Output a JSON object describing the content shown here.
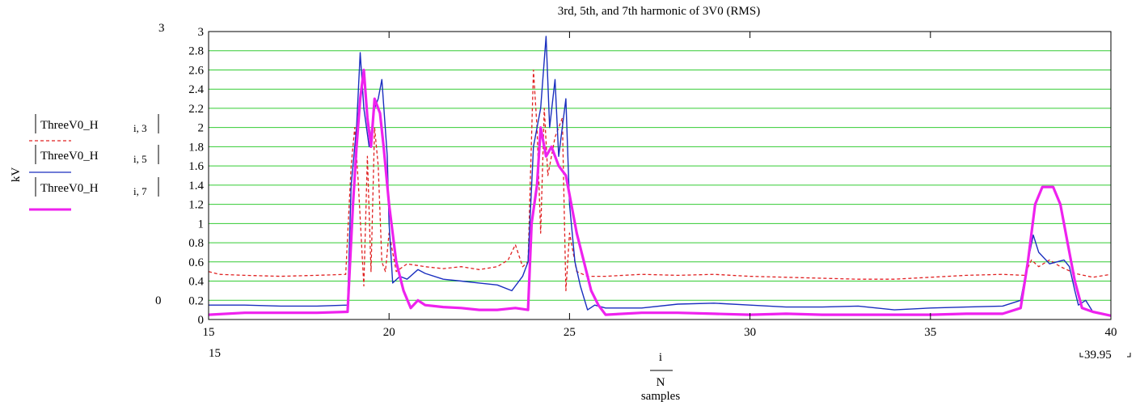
{
  "chart_data": {
    "type": "line",
    "title": "3rd, 5th, and 7th harmonic of 3V0 (RMS)",
    "ylabel": "kV",
    "xlabel_numerator": "i",
    "xlabel_denominator": "N",
    "xlabel_units": "samples",
    "xlim": [
      15,
      40
    ],
    "ylim": [
      0,
      3
    ],
    "x_ticks": [
      15,
      20,
      25,
      30,
      35,
      40
    ],
    "y_ticks": [
      0,
      0.2,
      0.4,
      0.6,
      0.8,
      1,
      1.2,
      1.4,
      1.6,
      1.8,
      2,
      2.2,
      2.4,
      2.6,
      2.8,
      3
    ],
    "y_range_labels": {
      "max": "3",
      "min": "0"
    },
    "x_range_labels": {
      "min": "15",
      "max": "39.95"
    },
    "grid": true,
    "series": [
      {
        "name": "ThreeV0_H",
        "subscript": "i, 3",
        "color": "#e02020",
        "style": "dashed",
        "points": [
          [
            15,
            0.5
          ],
          [
            15.3,
            0.47
          ],
          [
            16,
            0.46
          ],
          [
            17,
            0.45
          ],
          [
            18,
            0.46
          ],
          [
            18.8,
            0.47
          ],
          [
            18.95,
            1.6
          ],
          [
            19.05,
            2.0
          ],
          [
            19.15,
            1.4
          ],
          [
            19.3,
            0.35
          ],
          [
            19.4,
            1.7
          ],
          [
            19.5,
            0.5
          ],
          [
            19.6,
            2.0
          ],
          [
            19.7,
            1.6
          ],
          [
            19.8,
            0.6
          ],
          [
            19.9,
            0.5
          ],
          [
            20.0,
            0.9
          ],
          [
            20.2,
            0.5
          ],
          [
            20.5,
            0.58
          ],
          [
            21.0,
            0.55
          ],
          [
            21.5,
            0.53
          ],
          [
            22.0,
            0.55
          ],
          [
            22.5,
            0.52
          ],
          [
            23.0,
            0.55
          ],
          [
            23.3,
            0.62
          ],
          [
            23.5,
            0.78
          ],
          [
            23.7,
            0.55
          ],
          [
            23.85,
            0.6
          ],
          [
            24.0,
            2.6
          ],
          [
            24.1,
            2.0
          ],
          [
            24.2,
            0.9
          ],
          [
            24.3,
            2.2
          ],
          [
            24.4,
            1.5
          ],
          [
            24.6,
            1.9
          ],
          [
            24.8,
            2.1
          ],
          [
            24.9,
            0.3
          ],
          [
            25.0,
            0.9
          ],
          [
            25.2,
            0.5
          ],
          [
            25.5,
            0.45
          ],
          [
            26,
            0.45
          ],
          [
            27,
            0.47
          ],
          [
            28,
            0.46
          ],
          [
            29,
            0.47
          ],
          [
            30,
            0.45
          ],
          [
            31,
            0.44
          ],
          [
            32,
            0.43
          ],
          [
            33,
            0.42
          ],
          [
            34,
            0.42
          ],
          [
            35,
            0.44
          ],
          [
            36,
            0.46
          ],
          [
            37,
            0.47
          ],
          [
            37.6,
            0.46
          ],
          [
            37.8,
            0.62
          ],
          [
            38.0,
            0.55
          ],
          [
            38.3,
            0.62
          ],
          [
            38.6,
            0.55
          ],
          [
            39.0,
            0.48
          ],
          [
            39.5,
            0.44
          ],
          [
            40,
            0.47
          ]
        ]
      },
      {
        "name": "ThreeV0_H",
        "subscript": "i, 5",
        "color": "#1a2fbf",
        "style": "solid",
        "points": [
          [
            15,
            0.15
          ],
          [
            16,
            0.15
          ],
          [
            17,
            0.14
          ],
          [
            18,
            0.14
          ],
          [
            18.85,
            0.15
          ],
          [
            18.95,
            1.4
          ],
          [
            19.1,
            2.0
          ],
          [
            19.2,
            2.78
          ],
          [
            19.3,
            2.2
          ],
          [
            19.45,
            1.8
          ],
          [
            19.6,
            2.2
          ],
          [
            19.7,
            2.3
          ],
          [
            19.8,
            2.5
          ],
          [
            19.95,
            1.7
          ],
          [
            20.0,
            1.0
          ],
          [
            20.1,
            0.38
          ],
          [
            20.3,
            0.45
          ],
          [
            20.5,
            0.42
          ],
          [
            20.8,
            0.52
          ],
          [
            21.0,
            0.48
          ],
          [
            21.5,
            0.42
          ],
          [
            22,
            0.4
          ],
          [
            22.5,
            0.38
          ],
          [
            23,
            0.36
          ],
          [
            23.4,
            0.3
          ],
          [
            23.7,
            0.45
          ],
          [
            23.85,
            0.6
          ],
          [
            24.0,
            1.8
          ],
          [
            24.2,
            2.2
          ],
          [
            24.35,
            2.95
          ],
          [
            24.45,
            2.0
          ],
          [
            24.6,
            2.5
          ],
          [
            24.7,
            1.7
          ],
          [
            24.9,
            2.3
          ],
          [
            25.0,
            1.2
          ],
          [
            25.15,
            0.6
          ],
          [
            25.3,
            0.35
          ],
          [
            25.5,
            0.1
          ],
          [
            25.7,
            0.15
          ],
          [
            26,
            0.12
          ],
          [
            27,
            0.12
          ],
          [
            28,
            0.16
          ],
          [
            29,
            0.17
          ],
          [
            30,
            0.15
          ],
          [
            31,
            0.13
          ],
          [
            32,
            0.13
          ],
          [
            33,
            0.14
          ],
          [
            34,
            0.1
          ],
          [
            35,
            0.12
          ],
          [
            36,
            0.13
          ],
          [
            37,
            0.14
          ],
          [
            37.5,
            0.2
          ],
          [
            37.7,
            0.6
          ],
          [
            37.85,
            0.88
          ],
          [
            38.0,
            0.7
          ],
          [
            38.3,
            0.58
          ],
          [
            38.7,
            0.62
          ],
          [
            38.85,
            0.55
          ],
          [
            39.0,
            0.3
          ],
          [
            39.1,
            0.15
          ],
          [
            39.3,
            0.2
          ],
          [
            39.5,
            0.08
          ],
          [
            40,
            0.04
          ]
        ]
      },
      {
        "name": "ThreeV0_H",
        "subscript": "i, 7",
        "color": "#ee22ee",
        "style": "thick",
        "points": [
          [
            15,
            0.05
          ],
          [
            16,
            0.07
          ],
          [
            17,
            0.07
          ],
          [
            18,
            0.07
          ],
          [
            18.85,
            0.08
          ],
          [
            19.0,
            1.2
          ],
          [
            19.1,
            1.8
          ],
          [
            19.2,
            2.3
          ],
          [
            19.3,
            2.6
          ],
          [
            19.4,
            2.1
          ],
          [
            19.5,
            1.8
          ],
          [
            19.6,
            2.3
          ],
          [
            19.75,
            2.15
          ],
          [
            19.85,
            1.8
          ],
          [
            20.0,
            1.2
          ],
          [
            20.2,
            0.6
          ],
          [
            20.4,
            0.3
          ],
          [
            20.6,
            0.12
          ],
          [
            20.8,
            0.2
          ],
          [
            21.0,
            0.15
          ],
          [
            21.5,
            0.13
          ],
          [
            22,
            0.12
          ],
          [
            22.5,
            0.1
          ],
          [
            23,
            0.1
          ],
          [
            23.5,
            0.12
          ],
          [
            23.85,
            0.1
          ],
          [
            23.95,
            1.0
          ],
          [
            24.1,
            1.4
          ],
          [
            24.2,
            2.0
          ],
          [
            24.35,
            1.7
          ],
          [
            24.5,
            1.8
          ],
          [
            24.7,
            1.6
          ],
          [
            24.9,
            1.5
          ],
          [
            25.0,
            1.3
          ],
          [
            25.2,
            0.9
          ],
          [
            25.4,
            0.6
          ],
          [
            25.6,
            0.3
          ],
          [
            25.8,
            0.15
          ],
          [
            26.0,
            0.05
          ],
          [
            27,
            0.07
          ],
          [
            28,
            0.07
          ],
          [
            29,
            0.06
          ],
          [
            30,
            0.05
          ],
          [
            31,
            0.06
          ],
          [
            32,
            0.05
          ],
          [
            33,
            0.05
          ],
          [
            34,
            0.05
          ],
          [
            35,
            0.05
          ],
          [
            36,
            0.06
          ],
          [
            37,
            0.06
          ],
          [
            37.5,
            0.12
          ],
          [
            37.7,
            0.6
          ],
          [
            37.9,
            1.2
          ],
          [
            38.1,
            1.38
          ],
          [
            38.4,
            1.38
          ],
          [
            38.6,
            1.2
          ],
          [
            38.8,
            0.8
          ],
          [
            39.0,
            0.4
          ],
          [
            39.2,
            0.12
          ],
          [
            39.5,
            0.08
          ],
          [
            40,
            0.04
          ]
        ]
      }
    ]
  }
}
